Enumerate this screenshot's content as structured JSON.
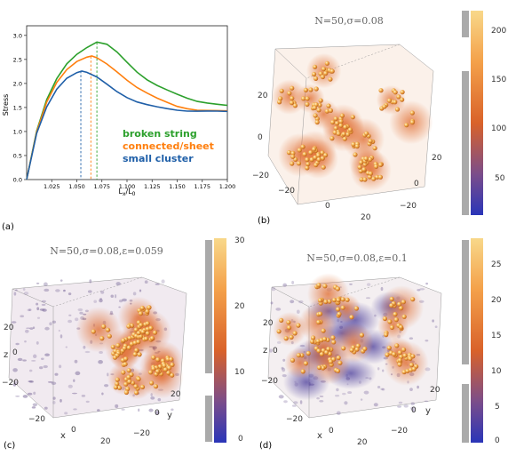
{
  "panel_labels": {
    "a": "(a)",
    "b": "(b)",
    "c": "(c)",
    "d": "(d)"
  },
  "chart_data": {
    "type": "line",
    "title": "",
    "xlabel": "Lx/L0",
    "ylabel": "Stress",
    "xlim": [
      1.0,
      1.2
    ],
    "ylim": [
      0.0,
      3.2
    ],
    "x_ticks": [
      "1.025",
      "1.050",
      "1.075",
      "1.100",
      "1.125",
      "1.150",
      "1.175",
      "1.200"
    ],
    "y_ticks": [
      "0.0",
      "0.5",
      "1.0",
      "1.5",
      "2.0",
      "2.5",
      "3.0"
    ],
    "grid": false,
    "legend_position": "bottom-right",
    "series": [
      {
        "name": "broken string",
        "color": "#2ca02c",
        "x": [
          1.0,
          1.01,
          1.02,
          1.03,
          1.04,
          1.05,
          1.06,
          1.07,
          1.08,
          1.09,
          1.1,
          1.11,
          1.12,
          1.13,
          1.14,
          1.15,
          1.16,
          1.17,
          1.18,
          1.19,
          1.2
        ],
        "y": [
          0.0,
          1.0,
          1.65,
          2.1,
          2.42,
          2.62,
          2.75,
          2.85,
          2.8,
          2.65,
          2.45,
          2.25,
          2.08,
          1.95,
          1.85,
          1.77,
          1.7,
          1.64,
          1.6,
          1.56,
          1.53
        ]
      },
      {
        "name": "connected/sheet",
        "color": "#ff7f0e",
        "x": [
          1.0,
          1.01,
          1.02,
          1.03,
          1.04,
          1.05,
          1.06,
          1.065,
          1.07,
          1.08,
          1.09,
          1.1,
          1.11,
          1.12,
          1.13,
          1.14,
          1.15,
          1.16,
          1.17,
          1.18,
          1.19,
          1.2
        ],
        "y": [
          0.0,
          0.98,
          1.6,
          2.02,
          2.3,
          2.47,
          2.55,
          2.56,
          2.52,
          2.4,
          2.25,
          2.08,
          1.92,
          1.79,
          1.68,
          1.6,
          1.53,
          1.49,
          1.45,
          1.43,
          1.42,
          1.42
        ]
      },
      {
        "name": "small cluster",
        "color": "#1f5fa8",
        "x": [
          1.0,
          1.01,
          1.02,
          1.03,
          1.04,
          1.05,
          1.055,
          1.06,
          1.07,
          1.08,
          1.09,
          1.1,
          1.11,
          1.12,
          1.13,
          1.14,
          1.15,
          1.16,
          1.17,
          1.18,
          1.19,
          1.2
        ],
        "y": [
          0.0,
          0.95,
          1.5,
          1.88,
          2.12,
          2.24,
          2.26,
          2.22,
          2.12,
          1.98,
          1.84,
          1.72,
          1.62,
          1.55,
          1.5,
          1.47,
          1.45,
          1.44,
          1.43,
          1.42,
          1.41,
          1.41
        ]
      }
    ],
    "vlines": [
      {
        "x": 1.054,
        "color": "#1f5fa8"
      },
      {
        "x": 1.064,
        "color": "#ff7f0e"
      },
      {
        "x": 1.07,
        "color": "#2ca02c"
      }
    ]
  },
  "plots3d": [
    {
      "key": "b",
      "title": "N=50,σ=0.08",
      "colorbar": {
        "ticks": [
          "200",
          "150",
          "100",
          "50"
        ]
      },
      "axis_ticks": {
        "left": [
          "20",
          "0",
          "−20"
        ],
        "bottom": [
          "−20",
          "0",
          "20"
        ],
        "right": [
          "20",
          "0",
          "−20"
        ]
      }
    },
    {
      "key": "c",
      "title": "N=50,σ=0.08,ε=0.059",
      "colorbar": {
        "ticks": [
          "30",
          "20",
          "10",
          "0"
        ]
      },
      "axis_ticks": {
        "left": [
          "20",
          "0",
          "−20"
        ],
        "bottom": [
          "−20",
          "0",
          "20"
        ],
        "right": [
          "20",
          "0",
          "−20"
        ]
      },
      "axis_labels": {
        "z": "z",
        "x": "x",
        "y": "y"
      }
    },
    {
      "key": "d",
      "title": "N=50,σ=0.08,ε=0.1",
      "colorbar": {
        "ticks": [
          "25",
          "20",
          "15",
          "10",
          "5",
          "0"
        ]
      },
      "axis_ticks": {
        "left": [
          "20",
          "0",
          "−20"
        ],
        "bottom": [
          "−20",
          "0",
          "20"
        ],
        "right": [
          "20",
          "0",
          "−20"
        ]
      },
      "axis_labels": {
        "z": "z",
        "x": "x",
        "y": "y"
      }
    }
  ]
}
